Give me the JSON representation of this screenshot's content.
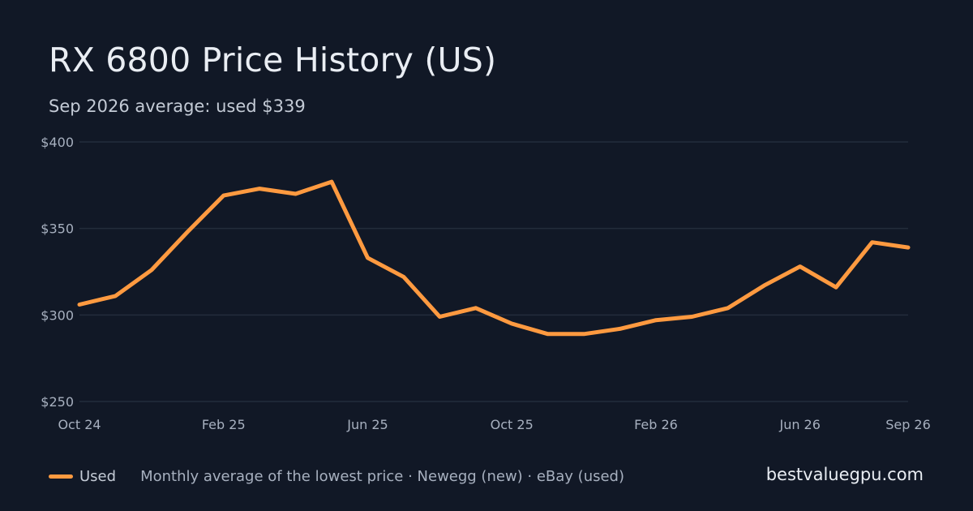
{
  "page": {
    "title": "RX 6800 Price History (US)",
    "subtitle": "Sep 2026 average: used $339",
    "caption": "Monthly average of the lowest price · Newegg (new) · eBay (used)",
    "site": "bestvaluegpu.com"
  },
  "chart_data": {
    "type": "line",
    "title": "RX 6800 Price History (US)",
    "subtitle": "Sep 2026 average: used $339",
    "x": [
      "2024-10",
      "2024-11",
      "2024-12",
      "2025-01",
      "2025-02",
      "2025-03",
      "2025-04",
      "2025-05",
      "2025-06",
      "2025-07",
      "2025-08",
      "2025-09",
      "2025-10",
      "2025-11",
      "2025-12",
      "2026-01",
      "2026-02",
      "2026-03",
      "2026-04",
      "2026-05",
      "2026-06",
      "2026-07",
      "2026-08",
      "2026-09"
    ],
    "x_tick_labels": [
      {
        "x": "2024-10",
        "label": "Oct 24"
      },
      {
        "x": "2025-02",
        "label": "Feb 25"
      },
      {
        "x": "2025-06",
        "label": "Jun 25"
      },
      {
        "x": "2025-10",
        "label": "Oct 25"
      },
      {
        "x": "2026-02",
        "label": "Feb 26"
      },
      {
        "x": "2026-06",
        "label": "Jun 26"
      },
      {
        "x": "2026-09",
        "label": "Sep 26"
      }
    ],
    "y_ticks": [
      {
        "value": 250,
        "label": "$250"
      },
      {
        "value": 300,
        "label": "$300"
      },
      {
        "value": 350,
        "label": "$350"
      },
      {
        "value": 400,
        "label": "$400"
      }
    ],
    "ylim": [
      250,
      400
    ],
    "grid": true,
    "legend_position": "bottom-left",
    "series": [
      {
        "name": "Used",
        "color": "#ff9a40",
        "values": [
          306,
          311,
          326,
          348,
          369,
          373,
          370,
          377,
          333,
          322,
          299,
          304,
          295,
          289,
          289,
          292,
          297,
          299,
          304,
          317,
          328,
          316,
          342,
          339
        ]
      }
    ]
  }
}
